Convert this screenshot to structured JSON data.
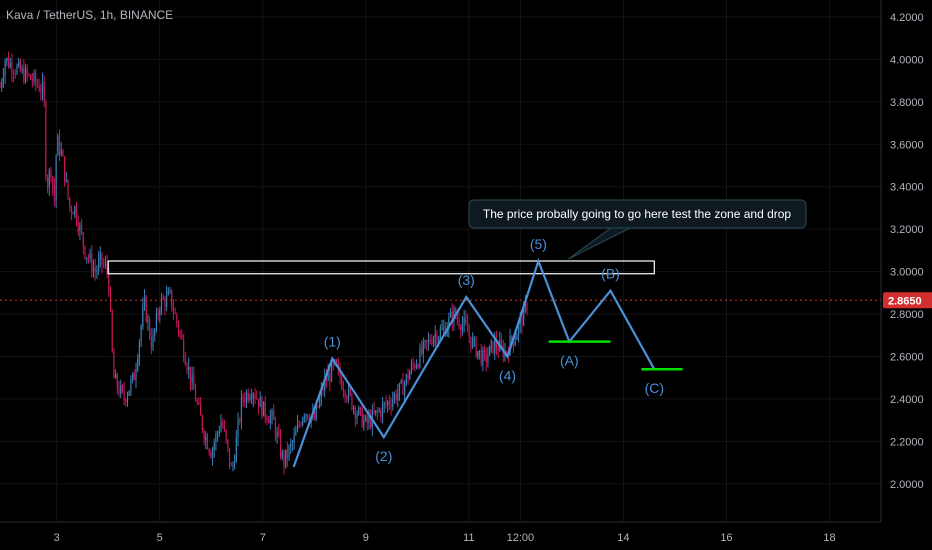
{
  "header": {
    "symbol_title": "Kava / TetherUS, 1h, BINANCE"
  },
  "chart_data": {
    "type": "candlestick",
    "symbol": "Kava / TetherUS",
    "interval": "1h",
    "exchange": "BINANCE",
    "ylim": [
      1.82,
      4.28
    ],
    "xlim": [
      1.9,
      19.0
    ],
    "y_ticks": [
      4.2,
      4.0,
      3.8,
      3.6,
      3.4,
      3.2,
      3.0,
      2.8,
      2.6,
      2.4,
      2.2,
      2.0
    ],
    "y_tick_labels": [
      "4.2000",
      "4.0000",
      "3.8000",
      "3.6000",
      "3.4000",
      "3.2000",
      "3.0000",
      "2.8000",
      "2.6000",
      "2.4000",
      "2.2000",
      "2.0000"
    ],
    "x_ticks": [
      3,
      5,
      7,
      9,
      11,
      12,
      14,
      16,
      18
    ],
    "x_tick_labels": [
      "3",
      "5",
      "7",
      "9",
      "11",
      "12:00",
      "14",
      "16",
      "18"
    ],
    "current_price": 2.865,
    "current_price_label": "2.8650",
    "colors": {
      "up": "#3a7fb5",
      "down": "#c2185b",
      "wave": "#4a90d9",
      "target": "#00e000",
      "price_line": "#d32f2f",
      "zone": "#ffffff"
    },
    "price_path": [
      [
        1.9,
        3.87
      ],
      [
        2.0,
        4.0
      ],
      [
        2.25,
        3.95
      ],
      [
        2.55,
        3.9
      ],
      [
        2.75,
        3.85
      ],
      [
        2.8,
        3.4
      ],
      [
        2.9,
        3.5
      ],
      [
        2.95,
        3.3
      ],
      [
        3.0,
        3.62
      ],
      [
        3.1,
        3.55
      ],
      [
        3.25,
        3.3
      ],
      [
        3.35,
        3.3
      ],
      [
        3.55,
        3.1
      ],
      [
        3.75,
        3.0
      ],
      [
        3.85,
        3.05
      ],
      [
        4.0,
        3.0
      ],
      [
        4.1,
        2.5
      ],
      [
        4.3,
        2.4
      ],
      [
        4.5,
        2.5
      ],
      [
        4.7,
        2.85
      ],
      [
        4.85,
        2.65
      ],
      [
        5.0,
        2.85
      ],
      [
        5.2,
        2.88
      ],
      [
        5.4,
        2.7
      ],
      [
        5.6,
        2.5
      ],
      [
        5.85,
        2.25
      ],
      [
        6.0,
        2.15
      ],
      [
        6.2,
        2.3
      ],
      [
        6.4,
        2.05
      ],
      [
        6.6,
        2.4
      ],
      [
        6.8,
        2.45
      ],
      [
        7.0,
        2.35
      ],
      [
        7.2,
        2.3
      ],
      [
        7.4,
        2.1
      ],
      [
        7.6,
        2.2
      ],
      [
        7.8,
        2.35
      ],
      [
        8.0,
        2.3
      ],
      [
        8.2,
        2.48
      ],
      [
        8.4,
        2.55
      ],
      [
        8.6,
        2.45
      ],
      [
        8.8,
        2.35
      ],
      [
        9.0,
        2.28
      ],
      [
        9.3,
        2.35
      ],
      [
        9.5,
        2.4
      ],
      [
        9.7,
        2.45
      ],
      [
        9.9,
        2.55
      ],
      [
        10.1,
        2.62
      ],
      [
        10.3,
        2.7
      ],
      [
        10.5,
        2.72
      ],
      [
        10.7,
        2.8
      ],
      [
        10.9,
        2.75
      ],
      [
        11.1,
        2.65
      ],
      [
        11.3,
        2.58
      ],
      [
        11.5,
        2.66
      ],
      [
        11.7,
        2.62
      ],
      [
        11.9,
        2.7
      ],
      [
        12.1,
        2.82
      ],
      [
        12.15,
        2.865
      ]
    ],
    "resistance_zone": {
      "x_start": 4.0,
      "x_end": 14.6,
      "y_low": 2.99,
      "y_high": 3.05
    },
    "current_price_line_xmin": 1.9,
    "wave_points": [
      {
        "label": "",
        "x": 7.6,
        "y": 2.08
      },
      {
        "label": "(1)",
        "x": 8.35,
        "y": 2.59
      },
      {
        "label": "(2)",
        "x": 9.35,
        "y": 2.22
      },
      {
        "label": "(3)",
        "x": 10.95,
        "y": 2.88
      },
      {
        "label": "(4)",
        "x": 11.75,
        "y": 2.6
      },
      {
        "label": "(5)",
        "x": 12.35,
        "y": 3.05
      },
      {
        "label": "(A)",
        "x": 12.95,
        "y": 2.67
      },
      {
        "label": "(B)",
        "x": 13.75,
        "y": 2.91
      },
      {
        "label": "(C)",
        "x": 14.6,
        "y": 2.54
      }
    ],
    "target_lines": [
      {
        "label": "(A)",
        "y": 2.67,
        "x_start": 12.55,
        "x_end": 13.75
      },
      {
        "label": "(C)",
        "y": 2.54,
        "x_start": 14.35,
        "x_end": 15.15
      }
    ],
    "annotation": "The price probally going to go here test the zone and drop"
  }
}
